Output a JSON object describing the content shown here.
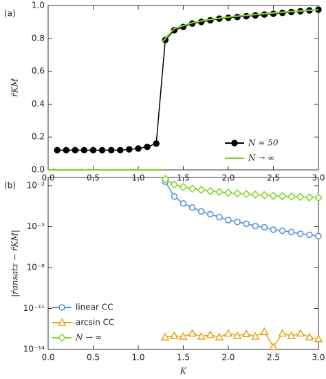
{
  "chart_data": [
    {
      "type": "line",
      "panel_label": "(a)",
      "ylabel": "r̄KM",
      "xlim": [
        0,
        3
      ],
      "xticks": [
        {
          "value": 0,
          "label": "0.0"
        },
        0.5,
        {
          "value": 1,
          "label": "1.0"
        },
        1.5,
        {
          "value": 2,
          "label": "2.0"
        },
        2.5,
        {
          "value": 3,
          "label": "3.0"
        }
      ],
      "ylim": [
        0,
        1
      ],
      "yticks": [
        {
          "value": 0,
          "label": "0.0"
        },
        0.2,
        0.4,
        0.6,
        0.8,
        {
          "value": 1,
          "label": "1.0"
        }
      ],
      "legend": "lower right",
      "series": [
        {
          "name": "N = 50",
          "color": "#000000",
          "marker": "circle-filled",
          "x": [
            0.1,
            0.2,
            0.3,
            0.4,
            0.5,
            0.6,
            0.7,
            0.8,
            0.9,
            1.0,
            1.1,
            1.2,
            1.3,
            1.4,
            1.5,
            1.6,
            1.7,
            1.8,
            1.9,
            2.0,
            2.1,
            2.2,
            2.3,
            2.4,
            2.5,
            2.6,
            2.7,
            2.8,
            2.9,
            3.0
          ],
          "values": [
            0.12,
            0.12,
            0.12,
            0.12,
            0.12,
            0.12,
            0.12,
            0.12,
            0.125,
            0.13,
            0.14,
            0.16,
            0.79,
            0.85,
            0.87,
            0.89,
            0.9,
            0.91,
            0.92,
            0.925,
            0.93,
            0.935,
            0.94,
            0.945,
            0.95,
            0.955,
            0.96,
            0.965,
            0.97,
            0.975
          ]
        },
        {
          "name": "N → ∞",
          "color": "#7ed321",
          "marker": "none",
          "x": [
            0,
            1.28,
            1.28,
            1.27,
            1.4,
            1.6,
            1.8,
            2.0,
            2.5,
            3.0
          ],
          "values": [
            0,
            0,
            null,
            0.78,
            0.86,
            0.895,
            0.915,
            0.93,
            0.955,
            0.975
          ]
        }
      ]
    },
    {
      "type": "line",
      "panel_label": "(b)",
      "ylabel": "|r̄ansatz − r̄KM|",
      "xlabel": "K",
      "ylog": true,
      "xlim": [
        0,
        3
      ],
      "xticks": [
        {
          "value": 0,
          "label": "0.0"
        },
        0.5,
        {
          "value": 1,
          "label": "1.0"
        },
        1.5,
        {
          "value": 2,
          "label": "2.0"
        },
        2.5,
        {
          "value": 3,
          "label": "3.0"
        }
      ],
      "ylim": [
        1e-14,
        0.04
      ],
      "yticks": [
        {
          "value": 0.01,
          "label": "10⁻²"
        },
        {
          "value": 1e-05,
          "label": "10⁻⁵"
        },
        {
          "value": 1e-08,
          "label": "10⁻⁸"
        },
        {
          "value": 1e-11,
          "label": "10⁻¹¹"
        },
        {
          "value": 1e-14,
          "label": "10⁻¹⁴"
        }
      ],
      "legend": "lower left",
      "series": [
        {
          "name": "linear CC",
          "color": "#4a90d9",
          "marker": "circle",
          "x": [
            1.3,
            1.4,
            1.5,
            1.6,
            1.7,
            1.8,
            1.9,
            2.0,
            2.1,
            2.2,
            2.3,
            2.4,
            2.5,
            2.6,
            2.7,
            2.8,
            2.9,
            3.0
          ],
          "values": [
            0.02,
            0.0016,
            0.0005,
            0.00025,
            0.00013,
            8e-05,
            5e-05,
            3e-05,
            2.2e-05,
            1.6e-05,
            1.1e-05,
            9e-06,
            6e-06,
            5e-06,
            4e-06,
            3e-06,
            2.5e-06,
            2e-06
          ]
        },
        {
          "name": "arcsin CC",
          "color": "#e8a317",
          "marker": "triangle",
          "x": [
            1.3,
            1.4,
            1.5,
            1.6,
            1.7,
            1.8,
            1.9,
            2.0,
            2.1,
            2.2,
            2.3,
            2.4,
            2.5,
            2.6,
            2.7,
            2.8,
            2.9,
            3.0
          ],
          "values": [
            8e-14,
            1e-13,
            9e-14,
            1.5e-13,
            9e-14,
            1.2e-13,
            8e-14,
            1.5e-13,
            1e-13,
            1.4e-13,
            9e-14,
            2e-13,
            1.5e-14,
            1.5e-13,
            1e-13,
            1.5e-13,
            8e-14,
            6e-14
          ]
        },
        {
          "name": "N → ∞",
          "color": "#7ed321",
          "marker": "diamond",
          "x": [
            1.3,
            1.4,
            1.5,
            1.6,
            1.7,
            1.8,
            1.9,
            2.0,
            2.1,
            2.2,
            2.3,
            2.4,
            2.5,
            2.6,
            2.7,
            2.8,
            2.9,
            3.0
          ],
          "values": [
            0.03,
            0.012,
            0.008,
            0.006,
            0.005,
            0.004,
            0.0035,
            0.003,
            0.0027,
            0.0024,
            0.0022,
            0.002,
            0.0018,
            0.0017,
            0.0016,
            0.0015,
            0.0014,
            0.0013
          ]
        }
      ]
    }
  ]
}
